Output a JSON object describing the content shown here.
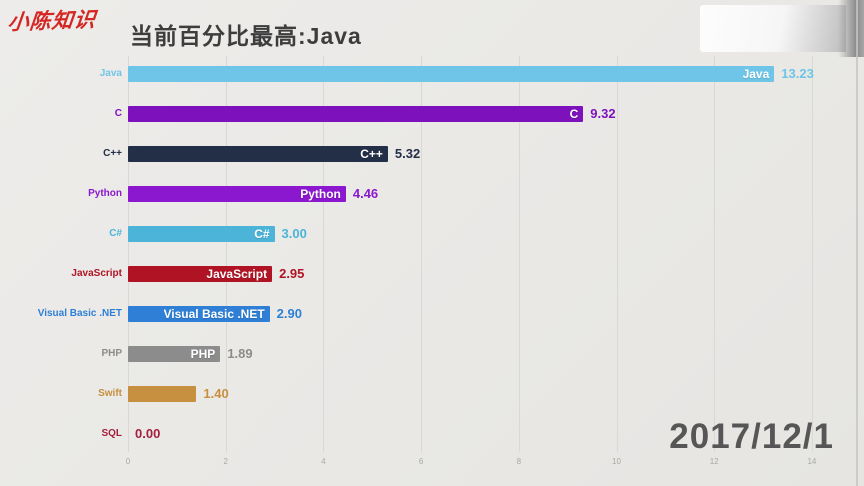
{
  "watermark": "小陈知识",
  "header": {
    "title": "当前百分比最高:Java"
  },
  "date_label": "2017/12/1",
  "chart_data": {
    "type": "bar",
    "orientation": "horizontal",
    "title": "当前百分比最高:Java",
    "xlabel": "",
    "ylabel": "",
    "xlim": [
      0,
      14.9
    ],
    "x_ticks": [
      "0",
      "2",
      "4",
      "6",
      "8",
      "10",
      "12",
      "14"
    ],
    "grid": true,
    "legend": "none",
    "categories": [
      "Java",
      "C",
      "C++",
      "Python",
      "C#",
      "JavaScript",
      "Visual Basic .NET",
      "PHP",
      "Swift",
      "SQL"
    ],
    "values": [
      13.23,
      9.32,
      5.32,
      4.46,
      3.0,
      2.95,
      2.9,
      1.89,
      1.4,
      0.0
    ],
    "bars": [
      {
        "label": "Java",
        "value": 13.23,
        "display_value": "13.23",
        "inside_label": "Java",
        "color": "#6fc5e7"
      },
      {
        "label": "C",
        "value": 9.32,
        "display_value": "9.32",
        "inside_label": "C",
        "color": "#7d12bd"
      },
      {
        "label": "C++",
        "value": 5.32,
        "display_value": "5.32",
        "inside_label": "C++",
        "color": "#232f47"
      },
      {
        "label": "Python",
        "value": 4.46,
        "display_value": "4.46",
        "inside_label": "Python",
        "color": "#8b17ce"
      },
      {
        "label": "C#",
        "value": 3.0,
        "display_value": "3.00",
        "inside_label": "C#",
        "color": "#4cb4d8"
      },
      {
        "label": "JavaScript",
        "value": 2.95,
        "display_value": "2.95",
        "inside_label": "JavaScript",
        "color": "#b01424"
      },
      {
        "label": "Visual Basic .NET",
        "value": 2.9,
        "display_value": "2.90",
        "inside_label": "Visual Basic .NET",
        "color": "#2e7fd5"
      },
      {
        "label": "PHP",
        "value": 1.89,
        "display_value": "1.89",
        "inside_label": "PHP",
        "color": "#8c8c8c"
      },
      {
        "label": "Swift",
        "value": 1.4,
        "display_value": "1.40",
        "inside_label": "",
        "color": "#c79040"
      },
      {
        "label": "SQL",
        "value": 0.0,
        "display_value": "0.00",
        "inside_label": "",
        "color": "#a31f3e"
      }
    ]
  }
}
